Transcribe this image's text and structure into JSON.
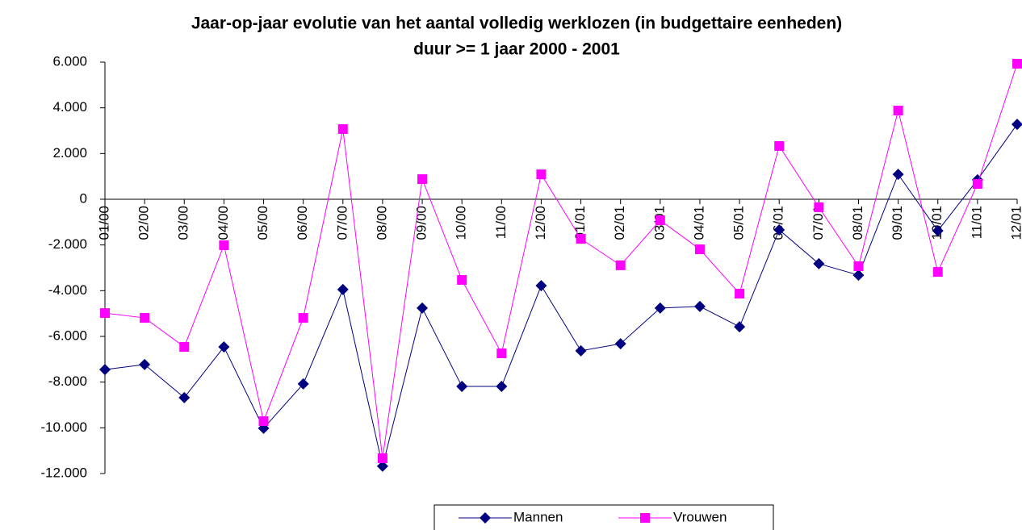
{
  "chart_data": {
    "type": "line",
    "title": "Jaar-op-jaar evolutie van het aantal volledig werklozen (in budgettaire eenheden)",
    "subtitle": "duur >= 1 jaar 2000 - 2001",
    "categories": [
      "01/00",
      "02/00",
      "03/00",
      "04/00",
      "05/00",
      "06/00",
      "07/00",
      "08/00",
      "09/00",
      "10/00",
      "11/00",
      "12/00",
      "01/01",
      "02/01",
      "03/01",
      "04/01",
      "05/01",
      "06/01",
      "07/01",
      "08/01",
      "09/01",
      "10/01",
      "11/01",
      "12/01"
    ],
    "series": [
      {
        "name": "Mannen",
        "color": "#000080",
        "marker": "diamond",
        "values": [
          -7450,
          -7230,
          -8680,
          -6460,
          -10020,
          -8080,
          -3950,
          -11680,
          -4760,
          -8190,
          -8190,
          -3780,
          -6630,
          -6320,
          -4760,
          -4690,
          -5580,
          -1340,
          -2820,
          -3320,
          1090,
          -1380,
          850,
          3280
        ]
      },
      {
        "name": "Vrouwen",
        "color": "#ff00ff",
        "marker": "square",
        "values": [
          -4980,
          -5190,
          -6460,
          -2010,
          -9710,
          -5190,
          3070,
          -11330,
          880,
          -3530,
          -6740,
          1090,
          -1730,
          -2890,
          -920,
          -2190,
          -4130,
          2330,
          -350,
          -2930,
          3880,
          -3180,
          670,
          5930
        ]
      }
    ],
    "ylim": [
      -12000,
      6000
    ],
    "yticks": [
      {
        "value": -12000,
        "label": "-12.000"
      },
      {
        "value": -10000,
        "label": "-10.000"
      },
      {
        "value": -8000,
        "label": "-8.000"
      },
      {
        "value": -6000,
        "label": "-6.000"
      },
      {
        "value": -4000,
        "label": "-4.000"
      },
      {
        "value": -2000,
        "label": "-2.000"
      },
      0,
      {
        "value": 2000,
        "label": "2.000"
      },
      {
        "value": 4000,
        "label": "4.000"
      },
      {
        "value": 6000,
        "label": "6.000"
      }
    ],
    "negative_tick_color": "#ff0000",
    "grid": false,
    "legend": "bottom"
  }
}
